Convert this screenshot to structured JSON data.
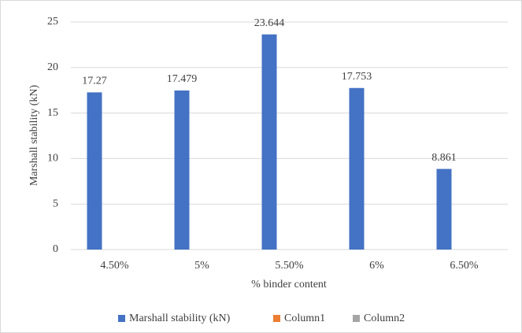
{
  "chart_data": {
    "type": "bar",
    "categories": [
      "4.50%",
      "5%",
      "5.50%",
      "6%",
      "6.50%"
    ],
    "series": [
      {
        "name": "Marshall stability (kN)",
        "color": "#4472c4",
        "values": [
          17.27,
          17.479,
          23.644,
          17.753,
          8.861
        ]
      },
      {
        "name": "Column1",
        "color": "#ed7d31",
        "values": [
          null,
          null,
          null,
          null,
          null
        ]
      },
      {
        "name": "Column2",
        "color": "#a5a5a5",
        "values": [
          null,
          null,
          null,
          null,
          null
        ]
      }
    ],
    "ylim": [
      0,
      25
    ],
    "yticks": [
      0,
      5,
      10,
      15,
      20,
      25
    ],
    "grid": true,
    "xlabel": "% binder content",
    "ylabel": "Marshall stability (kN)",
    "legend": "bottom",
    "data_labels": true
  }
}
